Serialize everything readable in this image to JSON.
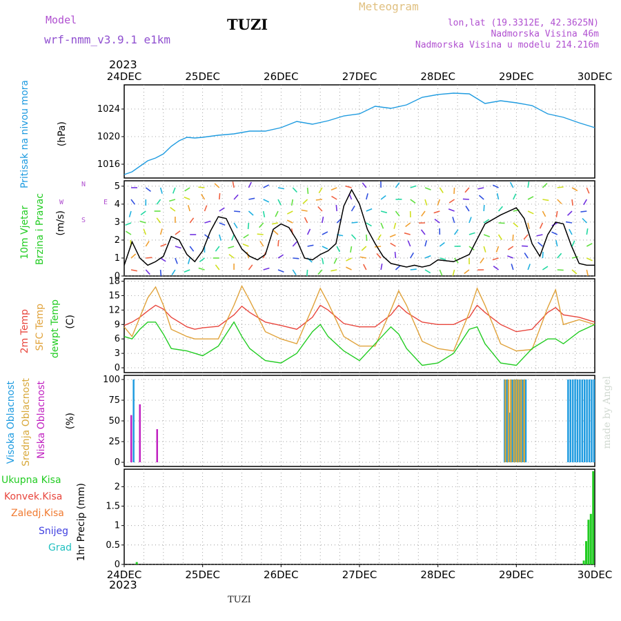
{
  "header": {
    "model_label": "Model",
    "model_name": "wrf-nmm_v3.9.1  e1km",
    "station": "TUZI",
    "meteogram": "Meteogram",
    "lonlat": "lon,lat (19.3312E, 42.3625N)",
    "elevation": "Nadmorska Visina 46m",
    "model_elevation": "Nadmorska Visina u modelu 214.216m",
    "year_top": "2023",
    "year_bottom": "2023",
    "footer": "TUZI",
    "credit": "made by Angel"
  },
  "colors": {
    "pressure": "#1e9be0",
    "wind_speed": "#000000",
    "t2m": "#e8453c",
    "tsfc": "#e0a23a",
    "dewpt": "#22cc22",
    "cloud_high": "#1e9be0",
    "cloud_mid": "#d8a83a",
    "cloud_low": "#c020c0",
    "precip_total": "#22cc22",
    "precip_conv": "#e8453c",
    "precip_strat": "#f07a30",
    "snow": "#4040e0",
    "hail": "#20c0c0",
    "grid": "#888888"
  },
  "chart_data": {
    "type": "line",
    "x_dates": [
      "24DEC",
      "25DEC",
      "26DEC",
      "27DEC",
      "28DEC",
      "29DEC",
      "30DEC"
    ],
    "panels": [
      {
        "id": "pressure",
        "ylabels": [
          "Pritisak na nivou mora",
          "(hPa)"
        ],
        "yticks": [
          "1016",
          "1020",
          "1024"
        ],
        "ylim": [
          1014,
          1027.5
        ],
        "series": [
          {
            "name": "Pritisak na nivou mora",
            "key": "pressure",
            "x": [
              0,
              0.1,
              0.2,
              0.3,
              0.4,
              0.5,
              0.6,
              0.7,
              0.8,
              0.9,
              1.0,
              1.2,
              1.4,
              1.6,
              1.8,
              2.0,
              2.2,
              2.4,
              2.6,
              2.8,
              3.0,
              3.2,
              3.4,
              3.6,
              3.8,
              4.0,
              4.2,
              4.4,
              4.6,
              4.8,
              5.0,
              5.2,
              5.4,
              5.6,
              5.8,
              6.0
            ],
            "values": [
              1014.5,
              1014.9,
              1015.7,
              1016.5,
              1016.9,
              1017.5,
              1018.6,
              1019.4,
              1019.9,
              1019.8,
              1019.9,
              1020.2,
              1020.4,
              1020.8,
              1020.8,
              1021.3,
              1022.2,
              1021.8,
              1022.3,
              1023.0,
              1023.3,
              1024.4,
              1024.1,
              1024.6,
              1025.7,
              1026.1,
              1026.3,
              1026.2,
              1024.8,
              1025.2,
              1024.9,
              1024.5,
              1023.3,
              1022.8,
              1022.0,
              1021.3
            ]
          }
        ]
      },
      {
        "id": "wind",
        "ylabels": [
          "10m Vjetar",
          "Brzina i Pravac",
          "(m/s)"
        ],
        "yticks": [
          "0",
          "1",
          "2",
          "3",
          "4",
          "5"
        ],
        "ylim": [
          0,
          5.3
        ],
        "compass": [
          "N",
          "W",
          "E",
          "S"
        ],
        "series": [
          {
            "name": "10m Vjetar",
            "key": "wind_speed",
            "x": [
              0,
              0.1,
              0.2,
              0.3,
              0.4,
              0.5,
              0.6,
              0.7,
              0.8,
              0.9,
              1.0,
              1.1,
              1.2,
              1.3,
              1.4,
              1.5,
              1.6,
              1.7,
              1.8,
              1.9,
              2.0,
              2.1,
              2.2,
              2.3,
              2.4,
              2.5,
              2.6,
              2.7,
              2.8,
              2.9,
              3.0,
              3.1,
              3.2,
              3.3,
              3.4,
              3.5,
              3.6,
              3.7,
              3.8,
              3.9,
              4.0,
              4.2,
              4.4,
              4.6,
              4.8,
              4.9,
              5.0,
              5.1,
              5.2,
              5.3,
              5.4,
              5.5,
              5.6,
              5.7,
              5.8,
              5.9,
              6.0
            ],
            "values": [
              0.6,
              1.9,
              1.0,
              0.6,
              0.8,
              1.1,
              2.2,
              2.0,
              1.2,
              0.8,
              1.4,
              2.5,
              3.3,
              3.2,
              2.3,
              1.5,
              1.1,
              0.9,
              1.2,
              2.6,
              2.9,
              2.7,
              2.0,
              1.0,
              0.9,
              1.2,
              1.4,
              1.8,
              3.9,
              4.8,
              4.0,
              2.6,
              1.8,
              1.1,
              0.7,
              0.6,
              0.5,
              0.6,
              0.5,
              0.6,
              0.9,
              0.8,
              1.2,
              2.9,
              3.4,
              3.6,
              3.8,
              3.2,
              1.8,
              1.1,
              2.3,
              3.0,
              2.9,
              1.7,
              0.7,
              0.6,
              0.6
            ]
          }
        ]
      },
      {
        "id": "temperature",
        "ylabels": [
          "2m Temp",
          "SFC Temp",
          "dewpt Temp",
          "(C)"
        ],
        "yticks": [
          "0",
          "3",
          "6",
          "9",
          "12",
          "15",
          "18"
        ],
        "ylim": [
          -1,
          18.5
        ],
        "series": [
          {
            "name": "2m Temp",
            "key": "t2m",
            "x": [
              0,
              0.1,
              0.2,
              0.3,
              0.4,
              0.5,
              0.6,
              0.8,
              0.9,
              1.0,
              1.2,
              1.4,
              1.5,
              1.6,
              1.8,
              2.0,
              2.2,
              2.4,
              2.5,
              2.6,
              2.8,
              3.0,
              3.2,
              3.4,
              3.5,
              3.6,
              3.8,
              4.0,
              4.2,
              4.4,
              4.5,
              4.6,
              4.8,
              5.0,
              5.2,
              5.4,
              5.5,
              5.6,
              5.8,
              6.0
            ],
            "values": [
              8.8,
              9.5,
              10.5,
              11.8,
              13.0,
              12.2,
              10.5,
              8.5,
              8.0,
              8.3,
              8.6,
              11.0,
              12.8,
              11.5,
              9.5,
              8.8,
              8.0,
              10.5,
              13.0,
              12.0,
              9.2,
              8.5,
              8.5,
              11.0,
              13.0,
              11.5,
              9.5,
              9.0,
              9.0,
              10.5,
              13.0,
              11.5,
              9.0,
              7.5,
              8.0,
              11.5,
              12.5,
              11.0,
              10.5,
              9.5
            ]
          },
          {
            "name": "SFC Temp",
            "key": "tsfc",
            "x": [
              0,
              0.1,
              0.2,
              0.3,
              0.4,
              0.5,
              0.6,
              0.8,
              0.9,
              1.0,
              1.2,
              1.4,
              1.5,
              1.6,
              1.8,
              2.0,
              2.2,
              2.4,
              2.5,
              2.6,
              2.8,
              3.0,
              3.2,
              3.4,
              3.5,
              3.6,
              3.8,
              4.0,
              4.2,
              4.4,
              4.5,
              4.6,
              4.8,
              5.0,
              5.2,
              5.4,
              5.5,
              5.6,
              5.8,
              6.0
            ],
            "values": [
              8.5,
              6.5,
              10.5,
              14.5,
              16.8,
              13.0,
              8.0,
              6.5,
              6.0,
              6.0,
              6.0,
              13.0,
              17.0,
              14.0,
              7.5,
              6.0,
              5.0,
              12.5,
              16.5,
              13.5,
              6.5,
              4.5,
              4.5,
              12.0,
              16.0,
              13.0,
              5.5,
              4.0,
              3.5,
              11.5,
              16.5,
              13.0,
              5.0,
              3.5,
              3.8,
              12.5,
              16.2,
              9.0,
              10.0,
              9.0
            ]
          },
          {
            "name": "dewpt Temp",
            "key": "dewpt",
            "x": [
              0,
              0.1,
              0.2,
              0.3,
              0.4,
              0.5,
              0.6,
              0.8,
              0.9,
              1.0,
              1.2,
              1.4,
              1.5,
              1.6,
              1.8,
              2.0,
              2.2,
              2.4,
              2.5,
              2.6,
              2.8,
              3.0,
              3.2,
              3.4,
              3.5,
              3.6,
              3.8,
              4.0,
              4.2,
              4.4,
              4.5,
              4.6,
              4.8,
              5.0,
              5.2,
              5.4,
              5.5,
              5.6,
              5.8,
              6.0
            ],
            "values": [
              6.5,
              6.0,
              8.0,
              9.5,
              9.5,
              7.0,
              4.0,
              3.5,
              3.0,
              2.5,
              4.5,
              9.5,
              6.5,
              4.0,
              1.5,
              1.0,
              3.0,
              7.5,
              9.0,
              6.5,
              3.5,
              1.5,
              5.0,
              8.5,
              7.0,
              4.0,
              0.5,
              1.0,
              3.0,
              8.0,
              8.5,
              5.0,
              1.0,
              0.5,
              4.0,
              6.0,
              6.0,
              5.0,
              7.5,
              9.0
            ]
          }
        ]
      },
      {
        "id": "clouds",
        "ylabels": [
          "Visoka Oblacnost",
          "Srednja Oblacnost",
          "Niska Oblacnost",
          "(%)"
        ],
        "yticks": [
          "0",
          "25",
          "50",
          "75",
          "100"
        ],
        "ylim": [
          -5,
          105
        ],
        "type": "bar",
        "series": [
          {
            "name": "Visoka Oblacnost",
            "key": "cloud_high",
            "x": [
              0.12,
              4.85,
              4.88,
              4.92,
              4.95,
              4.98,
              5.01,
              5.05,
              5.08,
              5.12,
              5.66,
              5.69,
              5.72,
              5.75,
              5.78,
              5.81,
              5.84,
              5.87,
              5.9,
              5.93,
              5.96,
              5.99
            ],
            "values": [
              100,
              100,
              100,
              60,
              100,
              100,
              100,
              100,
              100,
              100,
              100,
              100,
              100,
              100,
              100,
              100,
              100,
              100,
              100,
              100,
              100,
              100
            ]
          },
          {
            "name": "Srednja Oblacnost",
            "key": "cloud_mid",
            "x": [
              4.86,
              4.9,
              4.93,
              4.97,
              5.0,
              5.03,
              5.06,
              5.1
            ],
            "values": [
              100,
              100,
              100,
              100,
              100,
              100,
              100,
              100
            ]
          },
          {
            "name": "Niska Oblacnost",
            "key": "cloud_low",
            "x": [
              0.09,
              0.2,
              0.42
            ],
            "values": [
              57,
              70,
              40
            ]
          }
        ]
      },
      {
        "id": "precip",
        "ylabels": [
          "Ukupna Kisa",
          "Konvek.Kisa",
          "Zaledj.Kisa",
          "Snijeg",
          "Grad",
          "1hr Precip (mm)"
        ],
        "yticks": [
          "0",
          "0.5",
          "1",
          "1.5",
          "2"
        ],
        "ylim": [
          0,
          2.45
        ],
        "type": "bar",
        "series": [
          {
            "name": "Ukupna Kisa",
            "key": "precip_total",
            "x": [
              0.16,
              5.86,
              5.89,
              5.92,
              5.95,
              5.98
            ],
            "values": [
              0.06,
              0.1,
              0.6,
              1.15,
              1.3,
              2.4
            ]
          }
        ]
      }
    ]
  }
}
